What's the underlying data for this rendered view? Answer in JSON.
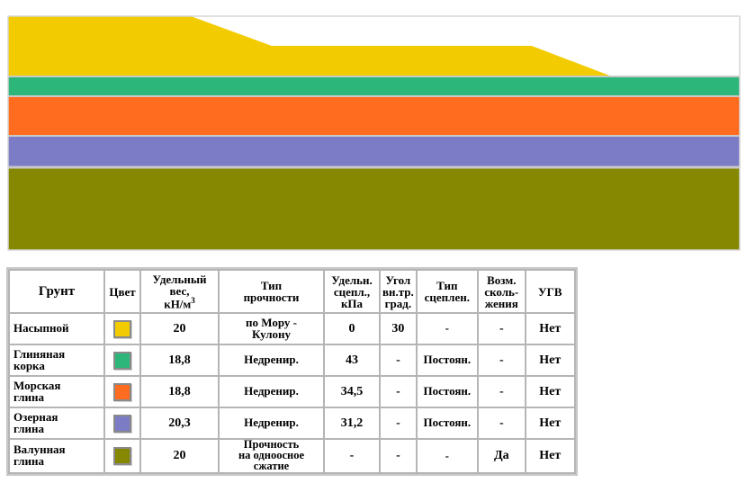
{
  "section": {
    "layers": [
      {
        "name": "fill",
        "color": "#f2cc00"
      },
      {
        "name": "clay-crust",
        "color": "#2db67a"
      },
      {
        "name": "marine-clay",
        "color": "#ff6b1f"
      },
      {
        "name": "lake-clay",
        "color": "#7b7bc6"
      },
      {
        "name": "boulder-clay",
        "color": "#858800"
      }
    ]
  },
  "table": {
    "headers": {
      "soil": "Грунт",
      "color": "Цвет",
      "unit_weight_l1": "Удельный",
      "unit_weight_l2": "вес,",
      "unit_weight_l3": "кН/м",
      "unit_weight_sup": "3",
      "strength_l1": "Тип",
      "strength_l2": "прочности",
      "cohesion_l1": "Удельн.",
      "cohesion_l2": "сцепл.,",
      "cohesion_l3": "кПа",
      "phi_l1": "Угол",
      "phi_l2": "вн.тр.",
      "phi_l3": "град.",
      "cohesion_type_l1": "Тип",
      "cohesion_type_l2": "сцеплен.",
      "slide_l1": "Возм.",
      "slide_l2": "сколь-",
      "slide_l3": "жения",
      "gwt": "УГВ"
    },
    "rows": [
      {
        "name_l1": "Насыпной",
        "name_l2": "",
        "color": "#f2cc00",
        "weight": "20",
        "strength_l1": "по Мору -",
        "strength_l2": "Кулону",
        "strength_l3": "",
        "cohesion": "0",
        "phi": "30",
        "cohesion_type": "-",
        "slide": "-",
        "gwt": "Нет"
      },
      {
        "name_l1": "Глиняная",
        "name_l2": "корка",
        "color": "#2db67a",
        "weight": "18,8",
        "strength_l1": "Недренир.",
        "strength_l2": "",
        "strength_l3": "",
        "cohesion": "43",
        "phi": "-",
        "cohesion_type": "Постоян.",
        "slide": "-",
        "gwt": "Нет"
      },
      {
        "name_l1": "Морская",
        "name_l2": "глина",
        "color": "#ff6b1f",
        "weight": "18,8",
        "strength_l1": "Недренир.",
        "strength_l2": "",
        "strength_l3": "",
        "cohesion": "34,5",
        "phi": "-",
        "cohesion_type": "Постоян.",
        "slide": "-",
        "gwt": "Нет"
      },
      {
        "name_l1": "Озерная",
        "name_l2": "глина",
        "color": "#7b7bc6",
        "weight": "20,3",
        "strength_l1": "Недренир.",
        "strength_l2": "",
        "strength_l3": "",
        "cohesion": "31,2",
        "phi": "-",
        "cohesion_type": "Постоян.",
        "slide": "-",
        "gwt": "Нет"
      },
      {
        "name_l1": "Валунная",
        "name_l2": "глина",
        "color": "#858800",
        "weight": "20",
        "strength_l1": "Прочность",
        "strength_l2": "на одноосное",
        "strength_l3": "сжатие",
        "cohesion": "-",
        "phi": "-",
        "cohesion_type": "-",
        "slide": "Да",
        "gwt": "Нет"
      }
    ]
  }
}
